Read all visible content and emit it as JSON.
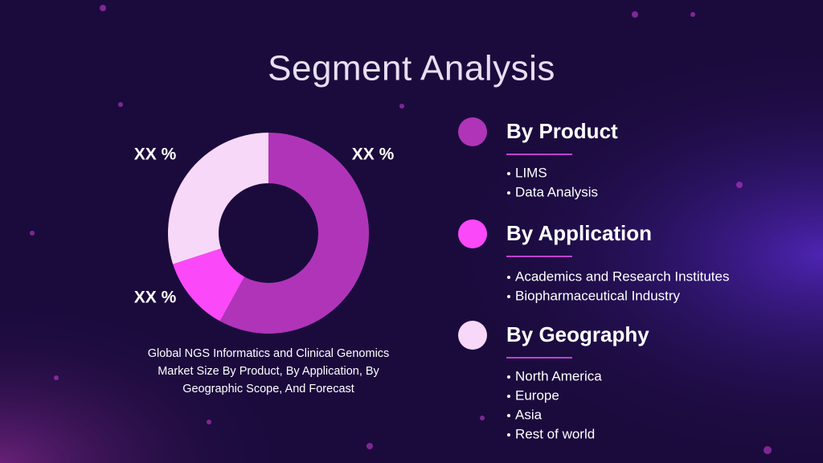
{
  "title": "Segment Analysis",
  "chart_data": {
    "type": "pie",
    "categories": [
      "By Product",
      "By Application",
      "By Geography"
    ],
    "values": [
      58,
      12,
      30
    ],
    "colors": [
      "#b034b8",
      "#fb48f8",
      "#f8d8f8"
    ],
    "annotations": [
      "XX %",
      "XX %",
      "XX %"
    ],
    "caption": [
      "Global NGS Informatics and Clinical Genomics",
      "Market Size By Product, By Application, By",
      "Geographic Scope, And Forecast"
    ]
  },
  "sections": [
    {
      "items": [
        "LIMS",
        "Data Analysis"
      ]
    },
    {
      "items": [
        "Academics and Research Institutes",
        "Biopharmaceutical Industry"
      ]
    },
    {
      "items": [
        "North America",
        "Europe",
        "Asia",
        "Rest of world"
      ]
    }
  ]
}
